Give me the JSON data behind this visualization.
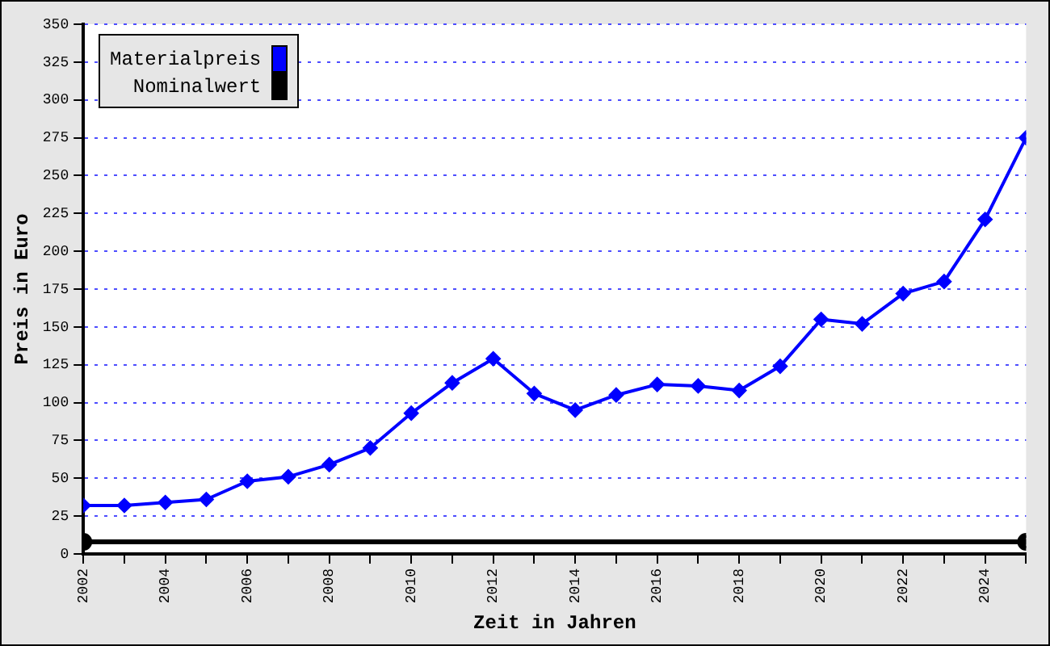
{
  "chart_data": {
    "type": "line",
    "xlabel": "Zeit in Jahren",
    "ylabel": "Preis in Euro",
    "x": [
      2002,
      2003,
      2004,
      2005,
      2006,
      2007,
      2008,
      2009,
      2010,
      2011,
      2012,
      2013,
      2014,
      2015,
      2016,
      2017,
      2018,
      2019,
      2020,
      2021,
      2022,
      2023,
      2024,
      2025
    ],
    "xlim": [
      2002,
      2025
    ],
    "xticks": [
      2002,
      {
        "value": 2003,
        "label": null
      },
      2004,
      {
        "value": 2005,
        "label": null
      },
      2006,
      {
        "value": 2007,
        "label": null
      },
      2008,
      {
        "value": 2009,
        "label": null
      },
      2010,
      {
        "value": 2011,
        "label": null
      },
      2012,
      {
        "value": 2013,
        "label": null
      },
      2014,
      {
        "value": 2015,
        "label": null
      },
      2016,
      {
        "value": 2017,
        "label": null
      },
      2018,
      {
        "value": 2019,
        "label": null
      },
      2020,
      {
        "value": 2021,
        "label": null
      },
      2022,
      {
        "value": 2023,
        "label": null
      },
      2024,
      {
        "value": 2025,
        "label": null
      }
    ],
    "ylim": [
      0,
      350
    ],
    "yticks": [
      0,
      25,
      50,
      75,
      100,
      125,
      150,
      175,
      200,
      225,
      250,
      275,
      300,
      325,
      350
    ],
    "grid": "y",
    "legend": "top left",
    "series": [
      {
        "name": "Materialpreis",
        "color": "#0000ff",
        "marker": "diamond",
        "values": [
          32,
          32,
          34,
          36,
          48,
          51,
          59,
          70,
          93,
          113,
          129,
          106,
          95,
          105,
          112,
          111,
          108,
          124,
          155,
          152,
          172,
          180,
          221,
          275
        ]
      },
      {
        "name": "Nominalwert",
        "color": "#000000",
        "marker": "circle",
        "x": [
          2002,
          2025
        ],
        "values": [
          8,
          8
        ]
      }
    ]
  }
}
